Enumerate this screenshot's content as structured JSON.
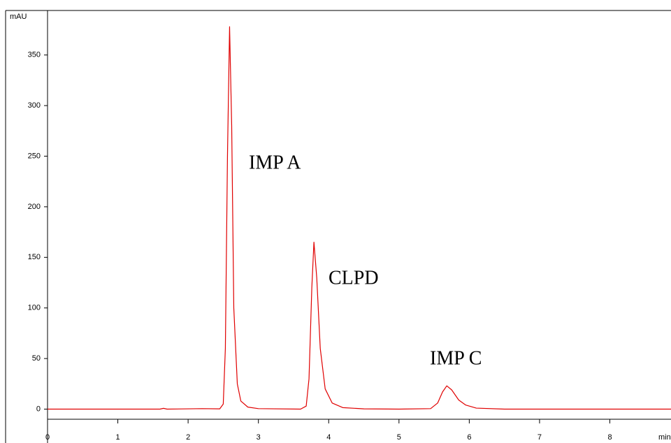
{
  "chart_data": {
    "type": "line",
    "y_axis_label": "mAU",
    "x_axis_label": "min",
    "xlim": [
      0,
      8.87
    ],
    "ylim": [
      -10,
      394
    ],
    "xticks": [
      0,
      1,
      2,
      3,
      4,
      5,
      6,
      7,
      8
    ],
    "yticks": [
      0,
      50,
      100,
      150,
      200,
      250,
      300,
      350
    ],
    "series": [
      {
        "color": "#e00000",
        "x": [
          0,
          1.6,
          1.65,
          1.7,
          2.2,
          2.45,
          2.5,
          2.53,
          2.56,
          2.59,
          2.62,
          2.65,
          2.7,
          2.75,
          2.85,
          3.0,
          3.6,
          3.68,
          3.72,
          3.76,
          3.79,
          3.83,
          3.88,
          3.95,
          4.05,
          4.2,
          4.5,
          5.0,
          5.45,
          5.55,
          5.62,
          5.68,
          5.75,
          5.85,
          5.95,
          6.1,
          6.5,
          8.87
        ],
        "values": [
          0,
          0,
          0.8,
          0,
          0.5,
          0.3,
          5,
          60,
          250,
          378,
          280,
          100,
          25,
          8,
          2,
          0.5,
          0,
          3,
          30,
          120,
          165,
          130,
          60,
          20,
          6,
          1.5,
          0.3,
          0,
          0.5,
          6,
          17,
          23,
          19,
          9,
          4,
          1,
          0,
          0
        ]
      }
    ],
    "annotations": [
      "IMP A",
      "CLPD",
      "IMP C"
    ]
  }
}
